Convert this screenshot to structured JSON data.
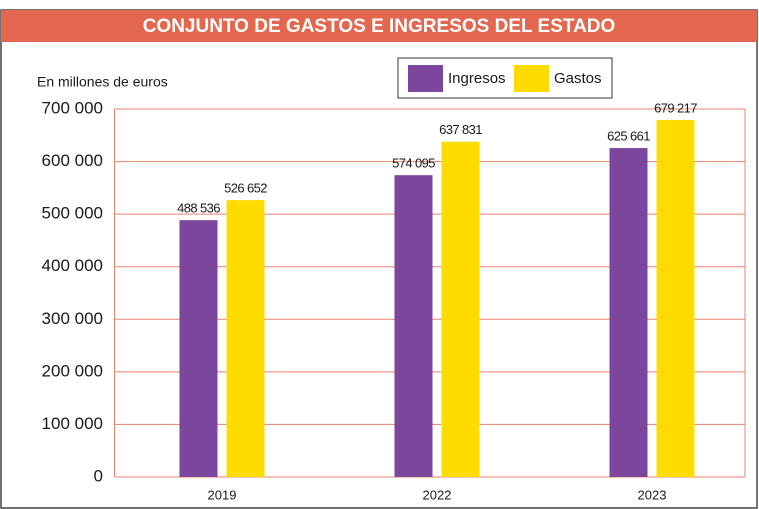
{
  "chart_data": {
    "type": "bar",
    "title": "CONJUNTO DE GASTOS E INGRESOS DEL ESTADO",
    "y_label": "En millones de euros",
    "categories": [
      "2019",
      "2022",
      "2023"
    ],
    "series": [
      {
        "name": "Ingresos",
        "color": "#7b469b",
        "values": [
          488536,
          574095,
          625661
        ],
        "value_labels": [
          "488 536",
          "574 095",
          "625 661"
        ]
      },
      {
        "name": "Gastos",
        "color": "#ffdc00",
        "values": [
          526652,
          637831,
          679217
        ],
        "value_labels": [
          "526 652",
          "637 831",
          "679 217"
        ]
      }
    ],
    "ylim": [
      0,
      700000
    ],
    "yticks": [
      0,
      {
        "value": 100000,
        "label": "100 000"
      },
      {
        "value": 200000,
        "label": "200 000"
      },
      {
        "value": 300000,
        "label": "300 000"
      },
      {
        "value": 400000,
        "label": "400 000"
      },
      {
        "value": 500000,
        "label": "500 000"
      },
      {
        "value": 600000,
        "label": "600 000"
      },
      {
        "value": 700000,
        "label": "700 000"
      }
    ],
    "grid": true
  }
}
